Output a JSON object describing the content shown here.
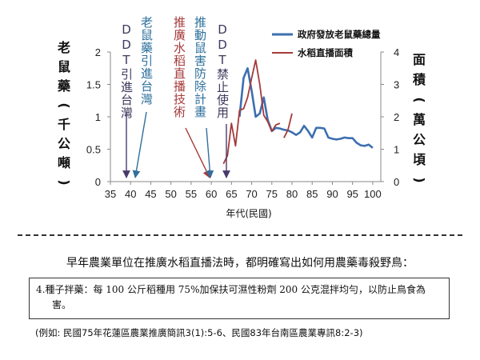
{
  "chart_data": {
    "type": "line",
    "xlabel": "年代(民國)",
    "xticks": [
      35,
      40,
      45,
      50,
      55,
      60,
      65,
      70,
      75,
      80,
      85,
      90,
      95,
      100
    ],
    "xlim": [
      35,
      102
    ],
    "y_left": {
      "label_chars": [
        "老",
        "鼠",
        "藥",
        "(",
        "千",
        "公",
        "噸",
        ")"
      ],
      "lim": [
        0,
        2
      ],
      "ticks": [
        "0",
        "0.5",
        "1",
        "1.5",
        "2"
      ]
    },
    "y_right": {
      "label_chars": [
        "面",
        "積",
        "(",
        "萬",
        "公",
        "頃",
        ")"
      ],
      "lim": [
        0,
        4
      ],
      "ticks": [
        "0",
        "1",
        "2",
        "3",
        "4"
      ]
    },
    "series": [
      {
        "name": "政府發放老鼠藥總量",
        "color": "#3d6fb0",
        "axis": "left",
        "x": [
          67,
          68,
          69,
          70,
          71,
          72,
          73,
          74,
          75,
          76,
          77,
          78,
          79,
          80,
          81,
          82,
          83,
          84,
          85,
          86,
          87,
          88,
          89,
          90,
          91,
          92,
          93,
          94,
          95,
          96,
          97,
          98,
          99,
          100
        ],
        "y": [
          1.0,
          1.6,
          1.75,
          1.4,
          1.0,
          1.05,
          1.3,
          0.95,
          0.78,
          0.83,
          0.82,
          0.8,
          0.79,
          0.76,
          0.72,
          0.76,
          0.86,
          0.78,
          0.68,
          0.83,
          0.83,
          0.82,
          0.68,
          0.66,
          0.65,
          0.66,
          0.68,
          0.67,
          0.67,
          0.6,
          0.56,
          0.55,
          0.57,
          0.52
        ]
      },
      {
        "name": "水稻直播面積",
        "color": "#a63a3a",
        "axis": "right",
        "segments": [
          {
            "x": [
              63,
              64,
              65,
              66,
              67,
              68,
              69,
              70,
              71,
              72,
              73,
              74,
              75,
              76,
              77
            ],
            "y": [
              0.55,
              0.8,
              1.8,
              1.1,
              2.2,
              2.25,
              2.6,
              3.2,
              3.75,
              3.0,
              2.05,
              1.85,
              1.55,
              1.75,
              1.8
            ]
          },
          {
            "x": [
              78,
              79,
              80
            ],
            "y": [
              1.35,
              1.6,
              2.1
            ]
          }
        ]
      }
    ],
    "annotations": [
      {
        "text": "DDT引進台灣",
        "x": 39,
        "color": "#3b3a5c",
        "arrow_color": "#4a3a6a"
      },
      {
        "text": "老鼠藥引進台灣",
        "x": 41,
        "color": "#2c6f9b",
        "arrow_color": "#2f6f9e"
      },
      {
        "text": "推廣水稻直播技術",
        "x": 60,
        "color": "#a63a3a",
        "arrow_color": "#a63a3a"
      },
      {
        "text": "推動鼠害防除計畫",
        "x": 60,
        "color": "#2c6f9b",
        "arrow_color": "#2f6f9e"
      },
      {
        "text": "DDT禁止使用",
        "x": 63,
        "color": "#3b3a5c",
        "arrow_color": "#4a3a6a"
      }
    ]
  },
  "caption": "早年農業單位在推廣水稻直播法時，都明確寫出如何用農藥毒殺野鳥：",
  "quote": {
    "line1": "4.種子拌藥：每 100 公斤稻種用 75%加保扶可濕性粉劑 200 公克混拌均勻，以防止鳥食為",
    "line2": "害。"
  },
  "example": "(例如: 民國75年花蓮區農業推廣簡訊3(1):5-6、民國83年台南區農業專訊8:2-3)"
}
